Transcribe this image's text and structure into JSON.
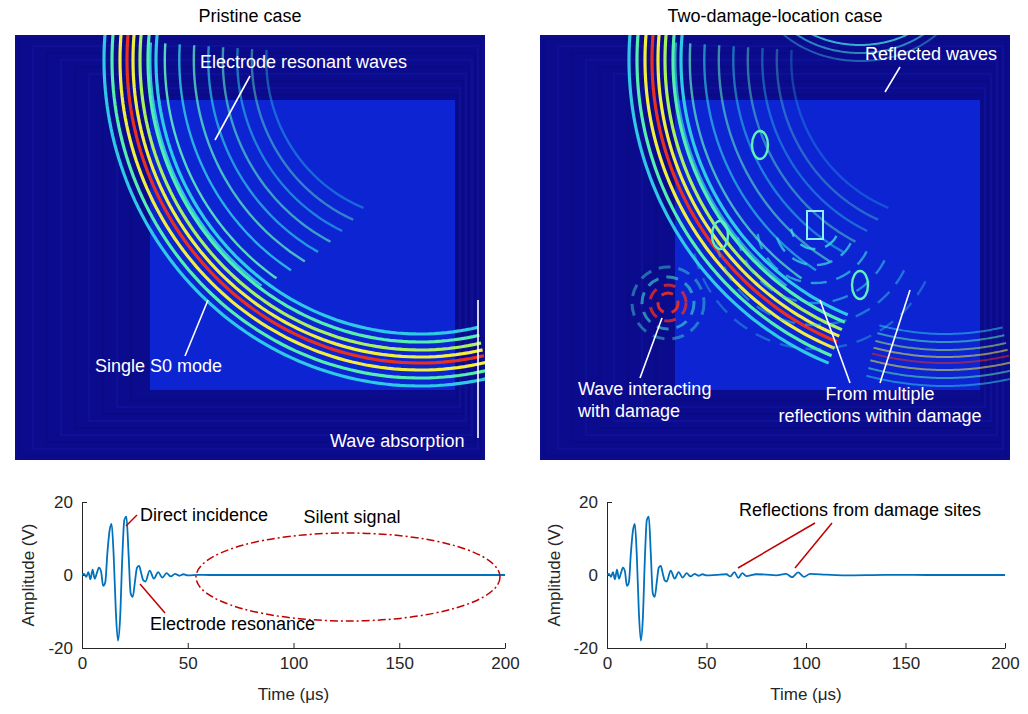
{
  "images": [
    {
      "title": "Pristine case",
      "annotations": [
        {
          "lines": [
            "Electrode resonant waves"
          ]
        },
        {
          "lines": [
            "Single S0 mode"
          ]
        },
        {
          "lines": [
            "Wave absorption"
          ]
        }
      ]
    },
    {
      "title": "Two-damage-location case",
      "annotations": [
        {
          "lines": [
            "Reflected waves"
          ]
        },
        {
          "lines": [
            "Wave interacting",
            "with damage"
          ]
        },
        {
          "lines": [
            "From multiple",
            "reflections within damage"
          ]
        }
      ]
    }
  ],
  "chart_data": [
    {
      "type": "line",
      "color": "#0072bd",
      "x": [
        0,
        1,
        2,
        3,
        4,
        5,
        6,
        7,
        8,
        9,
        10,
        11,
        12,
        13,
        14,
        15,
        16,
        17,
        18,
        19,
        20,
        21,
        22,
        23,
        24,
        25,
        26,
        27,
        28,
        29,
        30,
        32,
        34,
        36,
        38,
        40,
        42,
        44,
        46,
        48,
        50,
        55,
        60,
        70,
        80,
        90,
        100,
        120,
        140,
        160,
        180,
        200
      ],
      "values": [
        0,
        0.3,
        -0.5,
        0.8,
        -1.2,
        1.5,
        -1,
        0.5,
        2,
        1,
        -3,
        -2,
        6,
        12,
        14,
        5,
        -10,
        -18,
        -12,
        4,
        15,
        16,
        6,
        -5,
        -6,
        -2,
        2,
        2.5,
        0.5,
        -1.5,
        -1.8,
        1.2,
        -1,
        0.8,
        -0.7,
        0.5,
        -0.4,
        0.3,
        -0.2,
        0.2,
        -0.1,
        0.05,
        0,
        0,
        0,
        0,
        0,
        0,
        0,
        0,
        0,
        0
      ],
      "xlabel": "Time (μs)",
      "ylabel": "Amplitude (V)",
      "xlim": [
        0,
        200
      ],
      "xticks": [
        0,
        50,
        100,
        150,
        200
      ],
      "ylim": [
        -20,
        20
      ],
      "yticks": [
        -20,
        0,
        20
      ],
      "annotations": [
        "Direct incidence",
        "Electrode resonance",
        "Silent signal"
      ]
    },
    {
      "type": "line",
      "color": "#0072bd",
      "x": [
        0,
        1,
        2,
        3,
        4,
        5,
        6,
        7,
        8,
        9,
        10,
        11,
        12,
        13,
        14,
        15,
        16,
        17,
        18,
        19,
        20,
        21,
        22,
        23,
        24,
        25,
        26,
        27,
        28,
        29,
        30,
        32,
        34,
        36,
        38,
        40,
        42,
        44,
        46,
        48,
        50,
        55,
        60,
        62,
        64,
        66,
        68,
        70,
        75,
        80,
        85,
        90,
        93,
        96,
        99,
        102,
        110,
        120,
        140,
        160,
        180,
        200
      ],
      "values": [
        0,
        0.3,
        -0.5,
        0.8,
        -1.2,
        1.5,
        -1,
        0.5,
        2,
        1,
        -3,
        -2,
        6,
        12,
        14,
        5,
        -10,
        -18,
        -12,
        4,
        15,
        16,
        6,
        -5,
        -6,
        -2,
        2,
        2.5,
        0.5,
        -1.5,
        -1.8,
        1.2,
        -1,
        0.8,
        -0.7,
        0.5,
        -0.4,
        0.3,
        -0.2,
        0.2,
        -0.1,
        0.05,
        0.2,
        -0.4,
        0.8,
        -0.8,
        0.5,
        -0.3,
        0.2,
        0.1,
        -0.1,
        0.3,
        -0.6,
        0.7,
        -0.5,
        0.3,
        0.1,
        -0.1,
        0.05,
        0,
        0,
        0
      ],
      "xlabel": "Time (μs)",
      "ylabel": "Amplitude (V)",
      "xlim": [
        0,
        200
      ],
      "xticks": [
        0,
        50,
        100,
        150,
        200
      ],
      "ylim": [
        -20,
        20
      ],
      "yticks": [
        -20,
        0,
        20
      ],
      "annotations": [
        "Reflections from damage sites"
      ]
    }
  ]
}
